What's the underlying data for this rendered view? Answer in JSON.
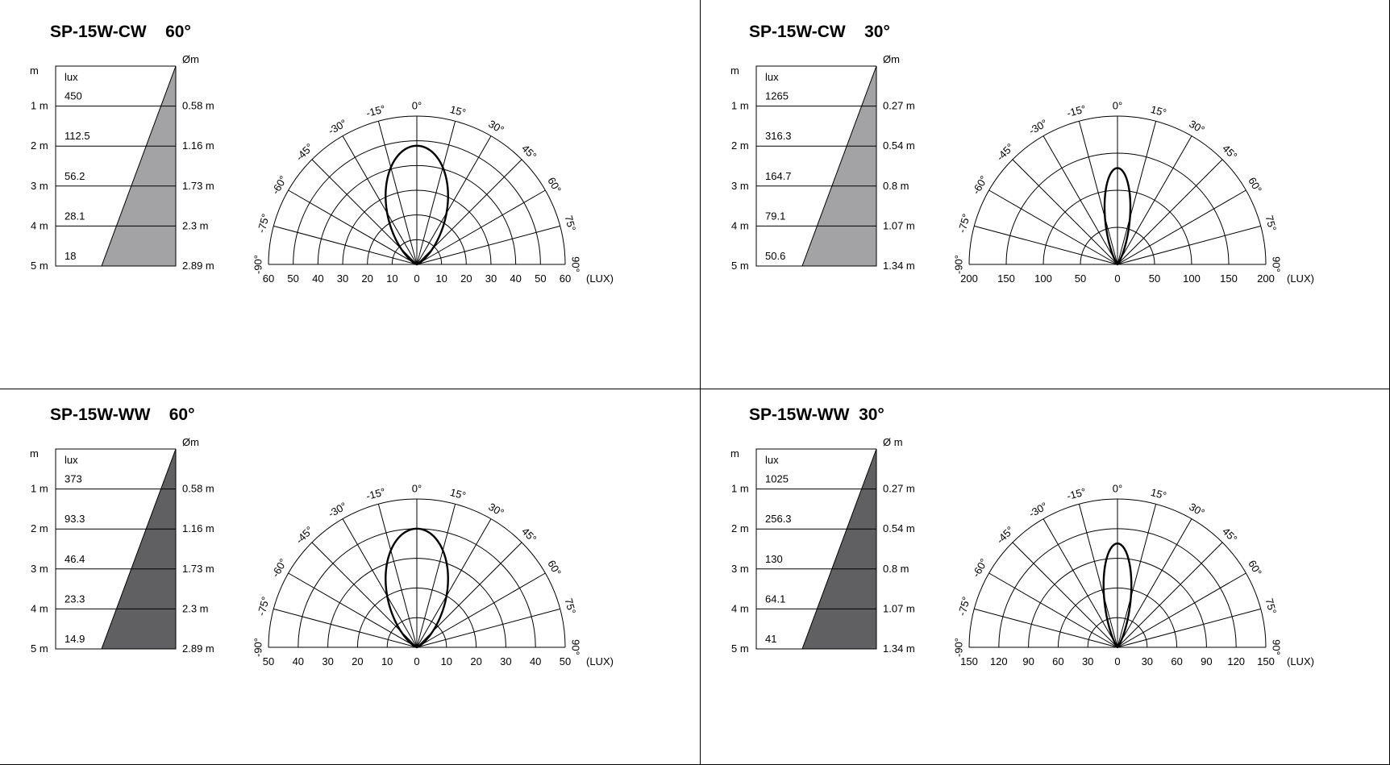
{
  "panels": [
    {
      "title": "SP-15W-CW",
      "beam_angle": "60°",
      "cone": {
        "distance_header": "m",
        "lux_header": "lux",
        "diameter_header": "Øm",
        "fill": "#a3a3a6",
        "rows": [
          {
            "distance": "1 m",
            "lux": "450",
            "diameter": "0.58 m"
          },
          {
            "distance": "2 m",
            "lux": "112.5",
            "diameter": "1.16 m"
          },
          {
            "distance": "3 m",
            "lux": "56.2",
            "diameter": "1.73 m"
          },
          {
            "distance": "4 m",
            "lux": "28.1",
            "diameter": "2.3 m"
          },
          {
            "distance": "5 m",
            "lux": "18",
            "diameter": "2.89 m"
          }
        ]
      },
      "polar": {
        "max_lux": 60,
        "lux_ticks": [
          "60",
          "50",
          "40",
          "30",
          "20",
          "10",
          "0",
          "10",
          "20",
          "30",
          "40",
          "50",
          "60"
        ],
        "unit": "(LUX)",
        "angle_labels": [
          "-90°",
          "-75°",
          "-60°",
          "-45°",
          "-30°",
          "-15°",
          "0°",
          "15°",
          "30°",
          "45°",
          "60°",
          "75°",
          "90°"
        ],
        "peak_lux": 48,
        "half_angle_deg": 30
      }
    },
    {
      "title": "SP-15W-CW",
      "beam_angle": "30°",
      "cone": {
        "distance_header": "m",
        "lux_header": "lux",
        "diameter_header": "Øm",
        "fill": "#a3a3a6",
        "rows": [
          {
            "distance": "1 m",
            "lux": "1265",
            "diameter": "0.27 m"
          },
          {
            "distance": "2 m",
            "lux": "316.3",
            "diameter": "0.54 m"
          },
          {
            "distance": "3 m",
            "lux": "164.7",
            "diameter": "0.8 m"
          },
          {
            "distance": "4 m",
            "lux": "79.1",
            "diameter": "1.07 m"
          },
          {
            "distance": "5 m",
            "lux": "50.6",
            "diameter": "1.34 m"
          }
        ]
      },
      "polar": {
        "max_lux": 200,
        "lux_ticks": [
          "200",
          "150",
          "100",
          "50",
          "0",
          "50",
          "100",
          "150",
          "200"
        ],
        "unit": "(LUX)",
        "angle_labels": [
          "-90°",
          "-75°",
          "-60°",
          "-45°",
          "-30°",
          "-15°",
          "0°",
          "15°",
          "30°",
          "45°",
          "60°",
          "75°",
          "90°"
        ],
        "peak_lux": 130,
        "half_angle_deg": 15
      }
    },
    {
      "title": "SP-15W-WW",
      "beam_angle": "60°",
      "cone": {
        "distance_header": "m",
        "lux_header": "lux",
        "diameter_header": "Øm",
        "fill": "#606062",
        "rows": [
          {
            "distance": "1 m",
            "lux": "373",
            "diameter": "0.58 m"
          },
          {
            "distance": "2 m",
            "lux": "93.3",
            "diameter": "1.16 m"
          },
          {
            "distance": "3 m",
            "lux": "46.4",
            "diameter": "1.73 m"
          },
          {
            "distance": "4 m",
            "lux": "23.3",
            "diameter": "2.3 m"
          },
          {
            "distance": "5 m",
            "lux": "14.9",
            "diameter": "2.89 m"
          }
        ]
      },
      "polar": {
        "max_lux": 50,
        "lux_ticks": [
          "50",
          "40",
          "30",
          "20",
          "10",
          "0",
          "10",
          "20",
          "30",
          "40",
          "50"
        ],
        "unit": "(LUX)",
        "angle_labels": [
          "-90°",
          "-75°",
          "-60°",
          "-45°",
          "-30°",
          "-15°",
          "0°",
          "15°",
          "30°",
          "45°",
          "60°",
          "75°",
          "90°"
        ],
        "peak_lux": 40,
        "half_angle_deg": 30
      }
    },
    {
      "title": "SP-15W-WW",
      "beam_angle": "30°",
      "cone": {
        "distance_header": "m",
        "lux_header": "lux",
        "diameter_header": "Ø m",
        "fill": "#606062",
        "rows": [
          {
            "distance": "1 m",
            "lux": "1025",
            "diameter": "0.27 m"
          },
          {
            "distance": "2 m",
            "lux": "256.3",
            "diameter": "0.54 m"
          },
          {
            "distance": "3 m",
            "lux": "130",
            "diameter": "0.8 m"
          },
          {
            "distance": "4 m",
            "lux": "64.1",
            "diameter": "1.07 m"
          },
          {
            "distance": "5 m",
            "lux": "41",
            "diameter": "1.34 m"
          }
        ]
      },
      "polar": {
        "max_lux": 150,
        "lux_ticks": [
          "150",
          "120",
          "90",
          "60",
          "30",
          "0",
          "30",
          "60",
          "90",
          "120",
          "150"
        ],
        "unit": "(LUX)",
        "angle_labels": [
          "-90°",
          "-75°",
          "-60°",
          "-45°",
          "-30°",
          "-15°",
          "0°",
          "15°",
          "30°",
          "45°",
          "60°",
          "75°",
          "90°"
        ],
        "peak_lux": 105,
        "half_angle_deg": 15
      }
    }
  ]
}
